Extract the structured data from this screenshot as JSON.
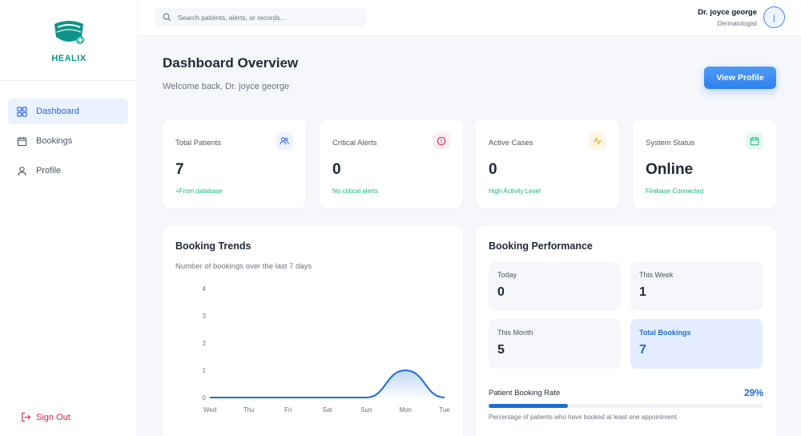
{
  "brand": {
    "name": "HEALIX"
  },
  "sidebar": {
    "items": [
      {
        "label": "Dashboard",
        "icon": "dashboard-grid-icon",
        "active": true
      },
      {
        "label": "Bookings",
        "icon": "calendar-icon",
        "active": false
      },
      {
        "label": "Profile",
        "icon": "user-icon",
        "active": false
      }
    ],
    "signout_label": "Sign Out"
  },
  "search": {
    "placeholder": "Search patients, alerts, or records..."
  },
  "user": {
    "name": "Dr. joyce george",
    "role": "Dermatologist",
    "initial": "j"
  },
  "header": {
    "title": "Dashboard Overview",
    "welcome": "Welcome back, Dr. joyce george",
    "view_profile_label": "View Profile"
  },
  "stats": [
    {
      "label": "Total Patients",
      "value": "7",
      "sub": "+From database",
      "icon": "users-icon",
      "color": "#2563eb"
    },
    {
      "label": "Critical Alerts",
      "value": "0",
      "sub": "No critical alerts",
      "icon": "alert-circle-icon",
      "color": "#e11d48"
    },
    {
      "label": "Active Cases",
      "value": "0",
      "sub": "High Activity Level",
      "icon": "activity-icon",
      "color": "#f59e0b"
    },
    {
      "label": "System Status",
      "value": "Online",
      "sub": "Firebase Connected",
      "icon": "calendar-check-icon",
      "color": "#10b981"
    }
  ],
  "booking_trends": {
    "title": "Booking Trends",
    "subtitle": "Number of bookings over the last 7 days"
  },
  "chart_data": {
    "type": "area",
    "title": "Booking Trends",
    "categories": [
      "Wed",
      "Thu",
      "Fri",
      "Sat",
      "Sun",
      "Mon",
      "Tue"
    ],
    "values": [
      0,
      0,
      0,
      0,
      0,
      1,
      0
    ],
    "ylim": [
      0,
      4
    ],
    "yticks": [
      0,
      1,
      2,
      3,
      4
    ],
    "grid": false,
    "color": "#1d6fd1"
  },
  "booking_performance": {
    "title": "Booking Performance",
    "tiles": [
      {
        "label": "Today",
        "value": "0",
        "highlight": false
      },
      {
        "label": "This Week",
        "value": "1",
        "highlight": false
      },
      {
        "label": "This Month",
        "value": "5",
        "highlight": false
      },
      {
        "label": "Total Bookings",
        "value": "7",
        "highlight": true
      }
    ],
    "rate_label": "Patient Booking Rate",
    "rate_value": "29%",
    "rate_fraction": 0.29,
    "rate_note": "Percentage of patients who have booked at least one appointment."
  }
}
